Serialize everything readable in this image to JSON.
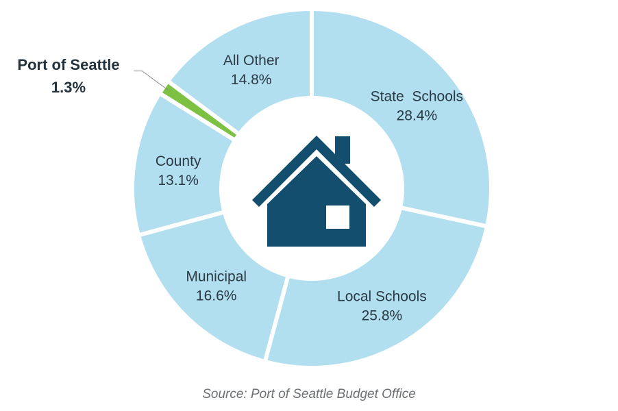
{
  "chart_data": {
    "type": "pie",
    "style": "donut",
    "center_icon": "house-icon",
    "slices": [
      {
        "label": "State  Schools",
        "value": 28.4,
        "value_label": "28.4%",
        "color": "#b2dfef"
      },
      {
        "label": "Local Schools",
        "value": 25.8,
        "value_label": "25.8%",
        "color": "#b2dfef"
      },
      {
        "label": "Municipal",
        "value": 16.6,
        "value_label": "16.6%",
        "color": "#b2dfef"
      },
      {
        "label": "County",
        "value": 13.1,
        "value_label": "13.1%",
        "color": "#b2dfef"
      },
      {
        "label": "Port of Seattle",
        "value": 1.3,
        "value_label": "1.3%",
        "color": "#7cc142",
        "highlight": true
      },
      {
        "label": "All Other",
        "value": 14.8,
        "value_label": "14.8%",
        "color": "#b2dfef"
      }
    ],
    "source": "Source: Port of Seattle Budget Office"
  },
  "colors": {
    "slice": "#b2dfef",
    "highlight": "#7cc142",
    "icon": "#144e6f",
    "text": "#2b3a45"
  }
}
